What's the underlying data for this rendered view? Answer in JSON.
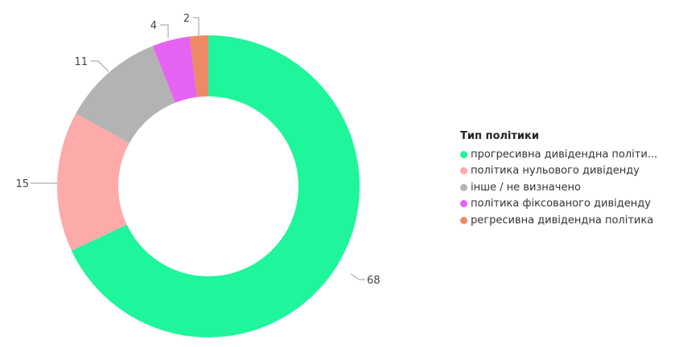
{
  "chart_data": {
    "type": "pie",
    "variant": "donut",
    "legend_title": "Тип політики",
    "legend_position": "right",
    "categories": [
      "прогресивна дивідендна політи...",
      "політика нульового дивіденду",
      "інше / не визначено",
      "політика фіксованого дивіденду",
      "регресивна дивідендна політика"
    ],
    "values": [
      68,
      15,
      11,
      4,
      2
    ],
    "data_labels": [
      "68",
      "15",
      "11",
      "4",
      "2"
    ],
    "colors": [
      "#1FF59A",
      "#FDAAAA",
      "#B3B3B3",
      "#E562F3",
      "#EC8A68"
    ]
  }
}
